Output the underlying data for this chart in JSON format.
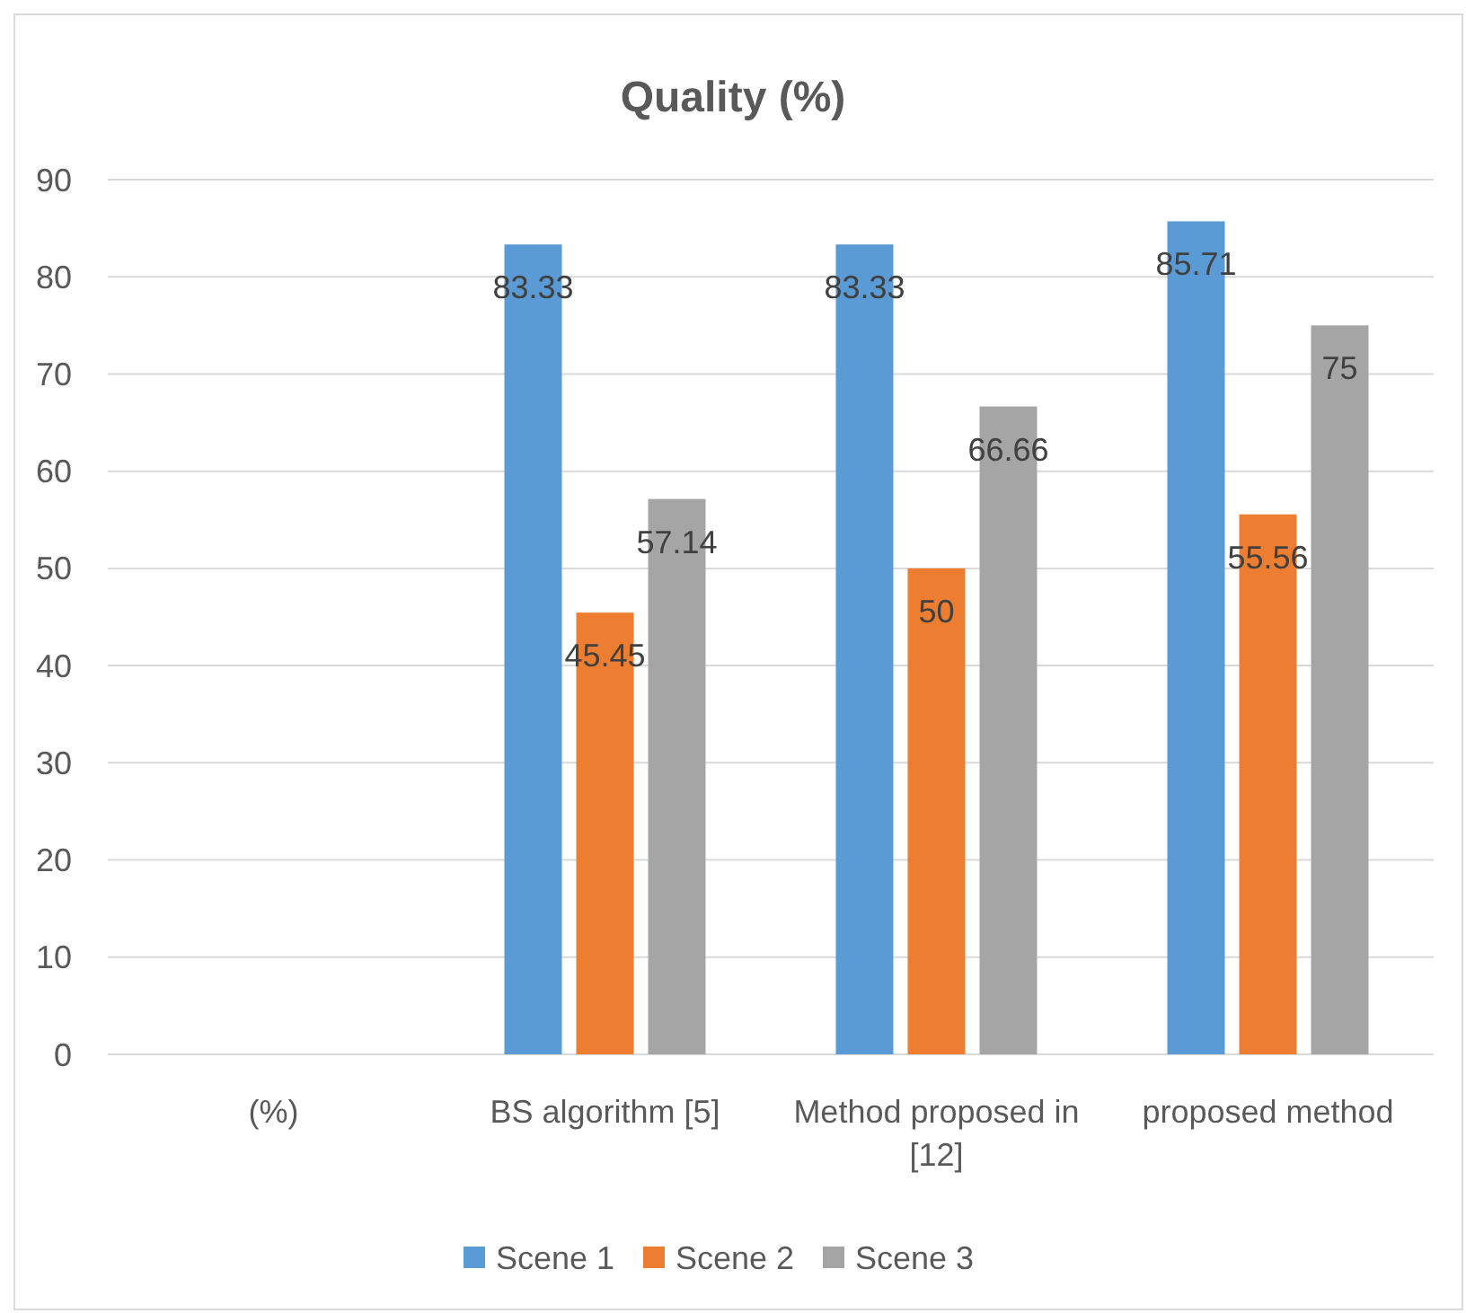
{
  "chart_data": {
    "type": "bar",
    "title": "Quality (%)",
    "categories": [
      "(%)",
      "BS algorithm [5]",
      "Method proposed in [12]",
      "proposed method"
    ],
    "series": [
      {
        "name": "Scene 1",
        "color": "#5b9bd5",
        "values": [
          null,
          83.33,
          83.33,
          85.71
        ]
      },
      {
        "name": "Scene 2",
        "color": "#ed7d31",
        "values": [
          null,
          45.45,
          50,
          55.56
        ]
      },
      {
        "name": "Scene 3",
        "color": "#a5a5a5",
        "values": [
          null,
          57.14,
          66.66,
          75
        ]
      }
    ],
    "ylim": [
      0,
      90
    ],
    "yticks": [
      0,
      10,
      20,
      30,
      40,
      50,
      60,
      70,
      80,
      90
    ],
    "grid": "y",
    "legend": "bottom",
    "data_labels": true
  }
}
